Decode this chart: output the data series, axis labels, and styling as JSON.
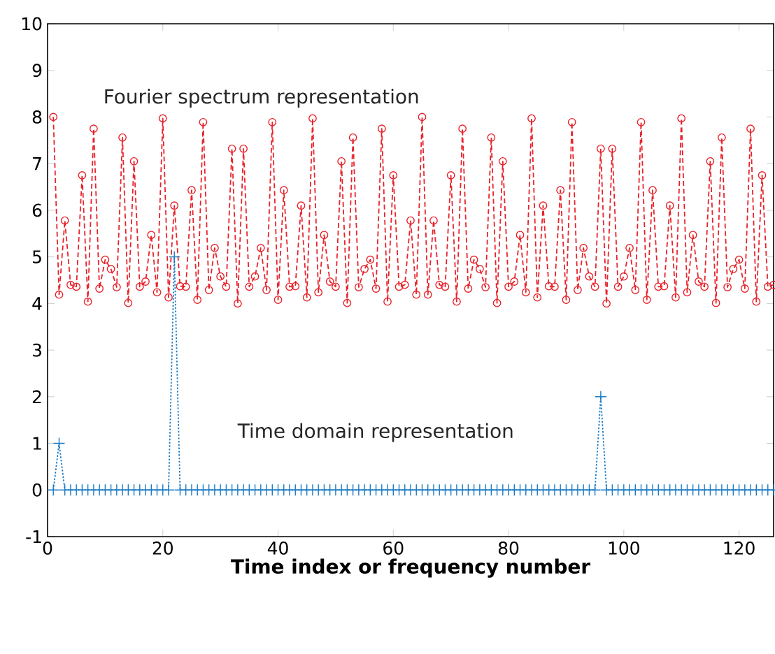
{
  "chart_data": {
    "type": "line",
    "xlabel": "Time index or frequency number",
    "annotations": [
      "Fourier spectrum representation",
      "Time domain representation"
    ],
    "x": [
      1,
      2,
      3,
      4,
      5,
      6,
      7,
      8,
      9,
      10,
      11,
      12,
      13,
      14,
      15,
      16,
      17,
      18,
      19,
      20,
      21,
      22,
      23,
      24,
      25,
      26,
      27,
      28,
      29,
      30,
      31,
      32,
      33,
      34,
      35,
      36,
      37,
      38,
      39,
      40,
      41,
      42,
      43,
      44,
      45,
      46,
      47,
      48,
      49,
      50,
      51,
      52,
      53,
      54,
      55,
      56,
      57,
      58,
      59,
      60,
      61,
      62,
      63,
      64,
      65,
      66,
      67,
      68,
      69,
      70,
      71,
      72,
      73,
      74,
      75,
      76,
      77,
      78,
      79,
      80,
      81,
      82,
      83,
      84,
      85,
      86,
      87,
      88,
      89,
      90,
      91,
      92,
      93,
      94,
      95,
      96,
      97,
      98,
      99,
      100,
      101,
      102,
      103,
      104,
      105,
      106,
      107,
      108,
      109,
      110,
      111,
      112,
      113,
      114,
      115,
      116,
      117,
      118,
      119,
      120,
      121,
      122,
      123,
      124,
      125,
      126
    ],
    "series": [
      {
        "color": "#e8232b",
        "marker": "circle",
        "line_style": "dashed",
        "values": [
          8.0,
          4.19,
          5.78,
          4.4,
          4.36,
          6.75,
          4.04,
          7.75,
          4.32,
          4.94,
          4.74,
          4.35,
          7.56,
          4.01,
          7.05,
          4.36,
          4.47,
          5.47,
          4.24,
          7.97,
          4.13,
          6.1,
          4.37,
          4.36,
          6.43,
          4.08,
          7.89,
          4.29,
          5.19,
          4.58,
          4.36,
          7.32,
          4.0,
          7.32,
          4.36,
          4.58,
          5.19,
          4.29,
          7.89,
          4.08,
          6.43,
          4.36,
          4.37,
          6.1,
          4.13,
          7.97,
          4.24,
          5.47,
          4.47,
          4.36,
          7.05,
          4.01,
          7.56,
          4.35,
          4.74,
          4.94,
          4.32,
          7.75,
          4.04,
          6.75,
          4.36,
          4.4,
          5.78,
          4.19,
          8.0,
          4.19,
          5.78,
          4.4,
          4.36,
          6.75,
          4.04,
          7.75,
          4.32,
          4.94,
          4.74,
          4.35,
          7.56,
          4.01,
          7.05,
          4.36,
          4.47,
          5.47,
          4.24,
          7.97,
          4.13,
          6.1,
          4.37,
          4.36,
          6.43,
          4.08,
          7.89,
          4.29,
          5.19,
          4.58,
          4.36,
          7.32,
          4.0,
          7.32,
          4.36,
          4.58,
          5.19,
          4.29,
          7.89,
          4.08,
          6.43,
          4.36,
          4.37,
          6.1,
          4.13,
          7.97,
          4.24,
          5.47,
          4.47,
          4.36,
          7.05,
          4.01,
          7.56,
          4.35,
          4.74,
          4.94,
          4.32,
          7.75,
          4.04,
          6.75,
          4.36,
          4.4
        ]
      },
      {
        "color": "#1b7bc4",
        "marker": "cross",
        "line_style": "dotted",
        "values": [
          0,
          1,
          0,
          0,
          0,
          0,
          0,
          0,
          0,
          0,
          0,
          0,
          0,
          0,
          0,
          0,
          0,
          0,
          0,
          0,
          0,
          5,
          0,
          0,
          0,
          0,
          0,
          0,
          0,
          0,
          0,
          0,
          0,
          0,
          0,
          0,
          0,
          0,
          0,
          0,
          0,
          0,
          0,
          0,
          0,
          0,
          0,
          0,
          0,
          0,
          0,
          0,
          0,
          0,
          0,
          0,
          0,
          0,
          0,
          0,
          0,
          0,
          0,
          0,
          0,
          0,
          0,
          0,
          0,
          0,
          0,
          0,
          0,
          0,
          0,
          0,
          0,
          0,
          0,
          0,
          0,
          0,
          0,
          0,
          0,
          0,
          0,
          0,
          0,
          0,
          0,
          0,
          0,
          0,
          0,
          2,
          0,
          0,
          0,
          0,
          0,
          0,
          0,
          0,
          0,
          0,
          0,
          0,
          0,
          0,
          0,
          0,
          0,
          0,
          0,
          0,
          0,
          0,
          0,
          0,
          0,
          0,
          0,
          0,
          0,
          0
        ]
      }
    ],
    "xlim": [
      0,
      126
    ],
    "ylim": [
      -1,
      10
    ],
    "xticks": [
      0,
      20,
      40,
      60,
      80,
      100,
      120
    ],
    "yticks": [
      -1,
      0,
      1,
      2,
      3,
      4,
      5,
      6,
      7,
      8,
      9,
      10
    ]
  }
}
